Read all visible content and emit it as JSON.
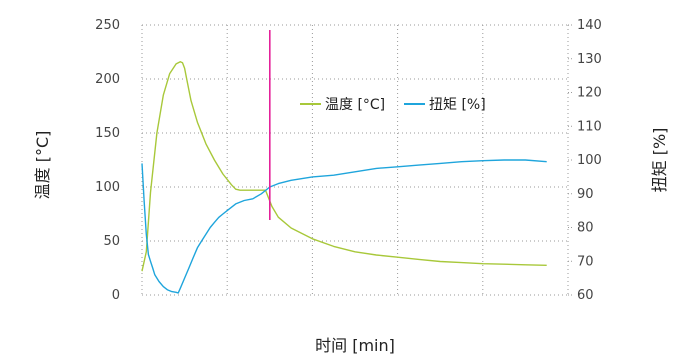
{
  "chart_data": {
    "type": "line",
    "xlabel": "时间 [min]",
    "ylabel_left": "温度 [°C]",
    "ylabel_right": "扭矩 [%]",
    "yleft_ticks": [
      "0",
      "50",
      "100",
      "150",
      "200",
      "250"
    ],
    "yright_ticks": [
      "60",
      "70",
      "80",
      "90",
      "100",
      "110",
      "120",
      "130",
      "140"
    ],
    "yleft_range": [
      0,
      250
    ],
    "yright_range": [
      60,
      140
    ],
    "x_range": [
      0,
      10
    ],
    "x_gridlines": [
      2,
      4,
      6,
      8,
      10
    ],
    "grid": "dotted",
    "legend_position": "right-middle",
    "colors": {
      "temperature": "#a8c83a",
      "torque": "#1fa5dc",
      "marker": "#e4219a",
      "grid": "#9a9a9a"
    },
    "marker_x": 3.0,
    "series": [
      {
        "name": "温度 [°C]",
        "axis": "left",
        "x": [
          0,
          0.1,
          0.2,
          0.35,
          0.5,
          0.65,
          0.8,
          0.9,
          0.95,
          1.0,
          1.05,
          1.15,
          1.3,
          1.5,
          1.7,
          1.9,
          2.1,
          2.2,
          2.3,
          2.45,
          2.6,
          2.75,
          2.9,
          3.05,
          3.2,
          3.5,
          4.0,
          4.5,
          5.0,
          5.5,
          6.0,
          6.5,
          7.0,
          7.5,
          8.0,
          8.5,
          9.0,
          9.5
        ],
        "y": [
          22,
          40,
          95,
          150,
          185,
          205,
          214,
          216,
          215,
          210,
          200,
          180,
          160,
          140,
          125,
          112,
          102,
          98,
          97,
          97,
          97,
          97,
          97,
          82,
          72,
          62,
          52,
          45,
          40,
          37,
          35,
          33,
          31,
          30,
          29,
          28.5,
          28,
          27.5
        ]
      },
      {
        "name": "扭矩 [%]",
        "axis": "right",
        "x": [
          0,
          0.05,
          0.1,
          0.15,
          0.2,
          0.25,
          0.3,
          0.4,
          0.5,
          0.6,
          0.7,
          0.8,
          0.85,
          0.9,
          1.0,
          1.1,
          1.2,
          1.3,
          1.4,
          1.5,
          1.6,
          1.7,
          1.8,
          1.9,
          2.0,
          2.2,
          2.4,
          2.6,
          2.8,
          3.0,
          3.2,
          3.5,
          4.0,
          4.5,
          5.0,
          5.5,
          6.0,
          6.5,
          7.0,
          7.5,
          8.0,
          8.5,
          9.0,
          9.5
        ],
        "y": [
          99,
          88,
          78,
          72,
          70,
          68,
          66,
          64,
          62.5,
          61.5,
          61,
          60.8,
          60.6,
          62,
          65,
          68,
          71,
          74,
          76,
          78,
          80,
          81.5,
          83,
          84,
          85,
          87,
          88,
          88.5,
          90,
          92,
          93,
          94,
          95,
          95.5,
          96.5,
          97.5,
          98,
          98.5,
          99,
          99.5,
          99.8,
          100,
          100,
          99.5
        ]
      }
    ]
  }
}
